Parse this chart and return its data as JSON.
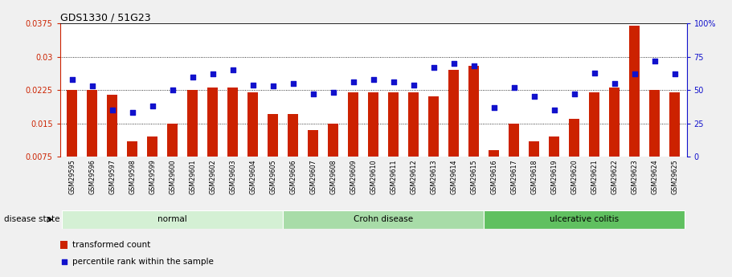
{
  "title": "GDS1330 / 51G23",
  "samples": [
    "GSM29595",
    "GSM29596",
    "GSM29597",
    "GSM29598",
    "GSM29599",
    "GSM29600",
    "GSM29601",
    "GSM29602",
    "GSM29603",
    "GSM29604",
    "GSM29605",
    "GSM29606",
    "GSM29607",
    "GSM29608",
    "GSM29609",
    "GSM29610",
    "GSM29611",
    "GSM29612",
    "GSM29613",
    "GSM29614",
    "GSM29615",
    "GSM29616",
    "GSM29617",
    "GSM29618",
    "GSM29619",
    "GSM29620",
    "GSM29621",
    "GSM29622",
    "GSM29623",
    "GSM29624",
    "GSM29625"
  ],
  "bar_values": [
    0.0225,
    0.0225,
    0.0215,
    0.011,
    0.012,
    0.015,
    0.0225,
    0.023,
    0.023,
    0.022,
    0.017,
    0.017,
    0.0135,
    0.015,
    0.022,
    0.022,
    0.022,
    0.022,
    0.021,
    0.027,
    0.028,
    0.009,
    0.015,
    0.011,
    0.012,
    0.016,
    0.022,
    0.023,
    0.037,
    0.0225,
    0.022
  ],
  "dot_values": [
    58,
    53,
    35,
    33,
    38,
    50,
    60,
    62,
    65,
    54,
    53,
    55,
    47,
    48,
    56,
    58,
    56,
    54,
    67,
    70,
    68,
    37,
    52,
    45,
    35,
    47,
    63,
    55,
    62,
    72,
    62
  ],
  "groups": [
    {
      "label": "normal",
      "start": 0,
      "end": 10,
      "color": "#d4f0d4"
    },
    {
      "label": "Crohn disease",
      "start": 11,
      "end": 20,
      "color": "#a8dca8"
    },
    {
      "label": "ulcerative colitis",
      "start": 21,
      "end": 30,
      "color": "#60c060"
    }
  ],
  "ylim_left": [
    0.0075,
    0.0375
  ],
  "ylim_right": [
    0,
    100
  ],
  "yticks_left": [
    0.0075,
    0.015,
    0.0225,
    0.03,
    0.0375
  ],
  "ytick_labels_left": [
    "0.0075",
    "0.015",
    "0.0225",
    "0.03",
    "0.0375"
  ],
  "yticks_right": [
    0,
    25,
    50,
    75,
    100
  ],
  "ytick_labels_right": [
    "0",
    "25",
    "50",
    "75",
    "100%"
  ],
  "bar_color": "#cc2200",
  "dot_color": "#1111cc",
  "grid_color": "#000000",
  "background_color": "#f0f0f0",
  "plot_bg": "#ffffff",
  "legend_items": [
    "transformed count",
    "percentile rank within the sample"
  ]
}
